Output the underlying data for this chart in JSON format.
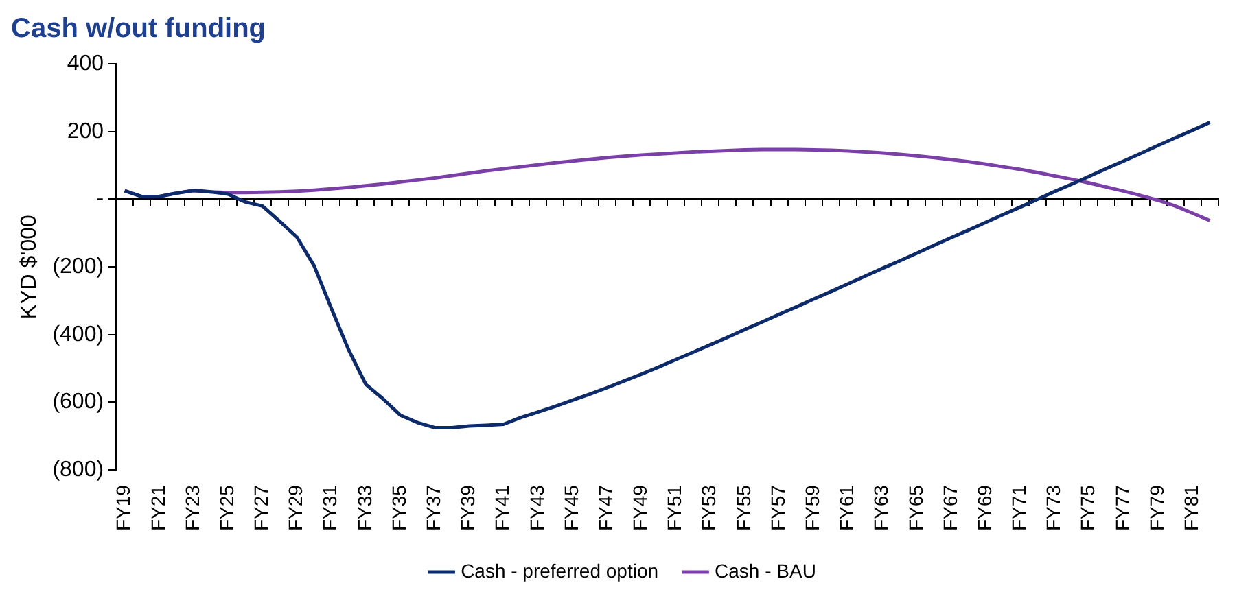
{
  "chart_data": {
    "type": "line",
    "title": "Cash w/out funding",
    "ylabel": "KYD $'000",
    "categories": [
      "FY19",
      null,
      "FY21",
      null,
      "FY23",
      null,
      "FY25",
      null,
      "FY27",
      null,
      "FY29",
      null,
      "FY31",
      null,
      "FY33",
      null,
      "FY35",
      null,
      "FY37",
      null,
      "FY39",
      null,
      "FY41",
      null,
      "FY43",
      null,
      "FY45",
      null,
      "FY47",
      null,
      "FY49",
      null,
      "FY51",
      null,
      "FY53",
      null,
      "FY55",
      null,
      "FY57",
      null,
      "FY59",
      null,
      "FY61",
      null,
      "FY63",
      null,
      "FY65",
      null,
      "FY67",
      null,
      "FY69",
      null,
      "FY71",
      null,
      "FY73",
      null,
      "FY75",
      null,
      "FY77",
      null,
      "FY79",
      null,
      "FY81",
      null
    ],
    "series": [
      {
        "name": "Cash - preferred option",
        "color": "#0d2a6b",
        "values": [
          25,
          8,
          8,
          18,
          26,
          22,
          15,
          -8,
          -20,
          -65,
          -112,
          -197,
          -323,
          -445,
          -547,
          -590,
          -638,
          -660,
          -675,
          -675,
          -670,
          -668,
          -665,
          -645,
          -629,
          -612,
          -594,
          -576,
          -557,
          -537,
          -517,
          -496,
          -474,
          -452,
          -430,
          -408,
          -385,
          -363,
          -340,
          -318,
          -295,
          -273,
          -250,
          -227,
          -204,
          -182,
          -159,
          -136,
          -113,
          -91,
          -68,
          -45,
          -23,
          0,
          23,
          45,
          68,
          91,
          113,
          136,
          159,
          182,
          204,
          227
        ]
      },
      {
        "name": "Cash - BAU",
        "color": "#7b3fa8",
        "values": [
          25,
          8,
          8,
          18,
          26,
          22,
          20,
          20,
          21,
          22,
          24,
          27,
          31,
          35,
          40,
          45,
          51,
          57,
          63,
          70,
          77,
          84,
          90,
          96,
          102,
          108,
          113,
          118,
          123,
          127,
          131,
          134,
          137,
          140,
          142,
          144,
          146,
          147,
          147,
          147,
          146,
          145,
          143,
          140,
          137,
          133,
          128,
          123,
          117,
          111,
          104,
          96,
          88,
          79,
          69,
          59,
          48,
          36,
          24,
          11,
          -3,
          -20,
          -41,
          -63
        ]
      }
    ],
    "ylim": [
      -800,
      400
    ],
    "yticks": [
      400,
      200,
      {
        "value": 0,
        "label": "-"
      },
      {
        "value": -200,
        "label": "(200)"
      },
      {
        "value": -400,
        "label": "(400)"
      },
      {
        "value": -600,
        "label": "(600)"
      },
      {
        "value": -800,
        "label": "(800)"
      }
    ],
    "legend": "bottom",
    "marker": "none",
    "line_style": "solid"
  }
}
